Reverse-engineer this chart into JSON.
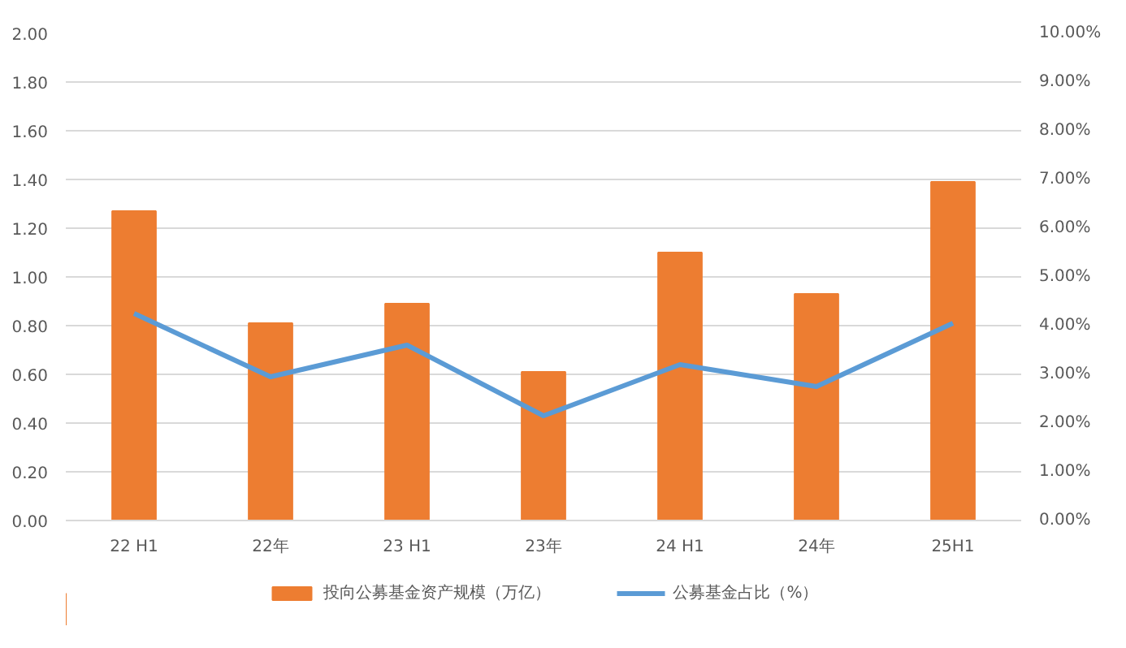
{
  "chart_data": {
    "type": "bar",
    "categories": [
      "22 H1",
      "22年",
      "23 H1",
      "23年",
      "24 H1",
      "24年",
      "25H1"
    ],
    "series": [
      {
        "name": "投向公募基金资产规模（万亿）",
        "color": "#ed7d31",
        "values": [
          1.27,
          0.81,
          0.89,
          0.61,
          1.1,
          0.93,
          1.39
        ]
      },
      {
        "name": "公募基金占比（%）",
        "type": "line",
        "axis": "y2",
        "color": "#5b9bd5",
        "values": [
          4.25,
          2.95,
          3.6,
          2.15,
          3.2,
          2.75,
          4.05
        ]
      }
    ],
    "ylim": [
      0,
      2
    ],
    "yticks": [
      {
        "value": 0,
        "label": "0.00"
      },
      {
        "value": 0.2,
        "label": "0.20"
      },
      {
        "value": 0.4,
        "label": "0.40"
      },
      {
        "value": 0.6,
        "label": "0.60"
      },
      {
        "value": 0.8,
        "label": "0.80"
      },
      {
        "value": 1.0,
        "label": "1.00"
      },
      {
        "value": 1.2,
        "label": "1.20"
      },
      {
        "value": 1.4,
        "label": "1.40"
      },
      {
        "value": 1.6,
        "label": "1.60"
      },
      {
        "value": 1.8,
        "label": "1.80"
      },
      {
        "value": 2.0,
        "label": "2.00"
      }
    ],
    "y2lim": [
      0,
      10
    ],
    "y2ticks": [
      {
        "value": 0,
        "label": "0.00%"
      },
      {
        "value": 1,
        "label": "1.00%"
      },
      {
        "value": 2,
        "label": "2.00%"
      },
      {
        "value": 3,
        "label": "3.00%"
      },
      {
        "value": 4,
        "label": "4.00%"
      },
      {
        "value": 5,
        "label": "5.00%"
      },
      {
        "value": 6,
        "label": "6.00%"
      },
      {
        "value": 7,
        "label": "7.00%"
      },
      {
        "value": 8,
        "label": "8.00%"
      },
      {
        "value": 9,
        "label": "9.00%"
      },
      {
        "value": 10,
        "label": "10.00%"
      }
    ],
    "grid": "y",
    "legend": "bottom",
    "marker": "none",
    "line_style": "solid"
  }
}
